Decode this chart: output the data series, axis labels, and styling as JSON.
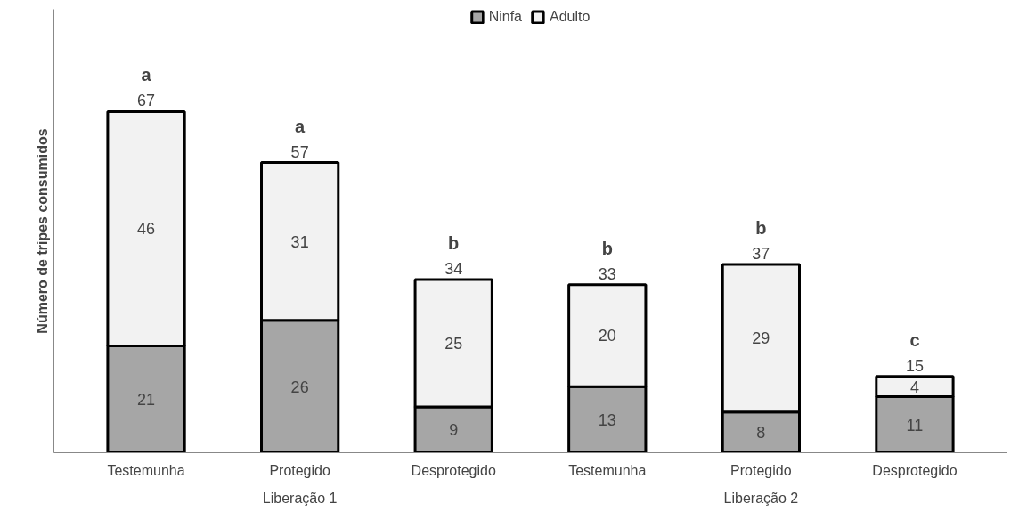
{
  "chart_data": {
    "type": "bar",
    "stacked": true,
    "ylabel": "Número de tripes consumidos",
    "categories": [
      "Testemunha",
      "Protegido",
      "Desprotegido",
      "Testemunha",
      "Protegido",
      "Desprotegido"
    ],
    "series": [
      {
        "name": "Ninfa",
        "color": "#a6a6a6",
        "values": [
          21,
          26,
          9,
          13,
          8,
          11
        ]
      },
      {
        "name": "Adulto",
        "color": "#f2f2f2",
        "values": [
          46,
          31,
          25,
          20,
          29,
          4
        ]
      }
    ],
    "totals": [
      "67",
      "57",
      "34",
      "33",
      "37",
      "15"
    ],
    "annotations": [
      "a",
      "a",
      "b",
      "b",
      "b",
      "c",
      "Liberação 1",
      "Liberação 2"
    ],
    "data_labels": true,
    "tick_labels": "x",
    "legend": "top"
  }
}
